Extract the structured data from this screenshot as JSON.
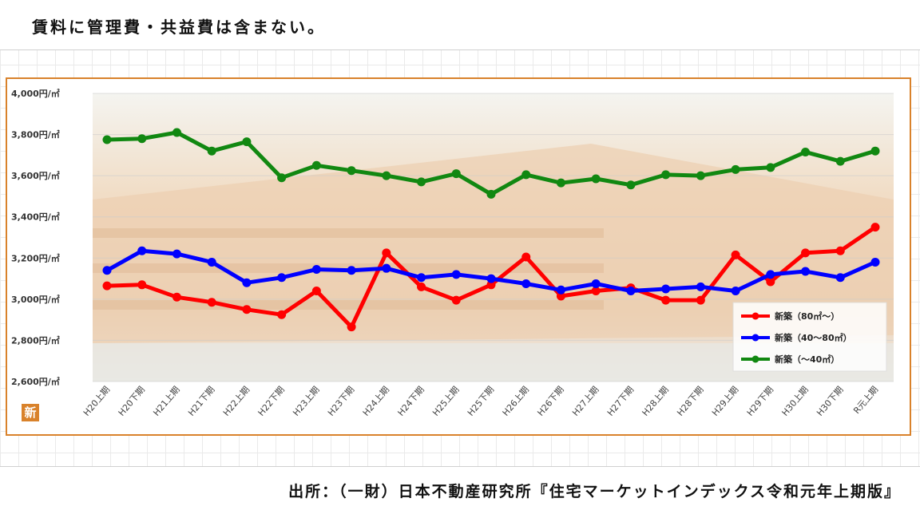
{
  "note": "賃料に管理費・共益費は含まない。",
  "source": "出所：（一財）日本不動産研究所『住宅マーケットインデックス令和元年上期版』",
  "logo": "新",
  "chart_data": {
    "type": "line",
    "title": "",
    "xlabel": "",
    "ylabel": "",
    "ylim": [
      2600,
      4000
    ],
    "yticks": [
      {
        "value": 4000,
        "label": "4,000円/㎡"
      },
      {
        "value": 3800,
        "label": "3,800円/㎡"
      },
      {
        "value": 3600,
        "label": "3,600円/㎡"
      },
      {
        "value": 3400,
        "label": "3,400円/㎡"
      },
      {
        "value": 3200,
        "label": "3,200円/㎡"
      },
      {
        "value": 3000,
        "label": "3,000円/㎡"
      },
      {
        "value": 2800,
        "label": "2,800円/㎡"
      },
      {
        "value": 2600,
        "label": "2,600円/㎡"
      }
    ],
    "categories": [
      "H20上期",
      "H20下期",
      "H21上期",
      "H21下期",
      "H22上期",
      "H22下期",
      "H23上期",
      "H23下期",
      "H24上期",
      "H24下期",
      "H25上期",
      "H25下期",
      "H26上期",
      "H26下期",
      "H27上期",
      "H27下期",
      "H28上期",
      "H28下期",
      "H29上期",
      "H29下期",
      "H30上期",
      "H30下期",
      "R元上期"
    ],
    "legend_position": "bottom-right",
    "series": [
      {
        "name": "新築（80㎡〜）",
        "color": "#ff0000",
        "values": [
          3065,
          3070,
          3010,
          2985,
          2950,
          2925,
          3040,
          2865,
          3225,
          3060,
          2995,
          3070,
          3205,
          3015,
          3040,
          3055,
          2995,
          2995,
          3215,
          3085,
          3225,
          3235,
          3350
        ]
      },
      {
        "name": "新築（40〜80㎡）",
        "color": "#0000ff",
        "values": [
          3140,
          3235,
          3220,
          3180,
          3080,
          3105,
          3145,
          3140,
          3150,
          3105,
          3120,
          3100,
          3075,
          3045,
          3075,
          3040,
          3050,
          3060,
          3040,
          3120,
          3135,
          3105,
          3180
        ]
      },
      {
        "name": "新築（〜40㎡）",
        "color": "#118811",
        "values": [
          3775,
          3780,
          3810,
          3720,
          3765,
          3590,
          3650,
          3625,
          3600,
          3570,
          3610,
          3510,
          3605,
          3565,
          3585,
          3555,
          3605,
          3600,
          3630,
          3640,
          3715,
          3670,
          3720
        ]
      }
    ]
  }
}
